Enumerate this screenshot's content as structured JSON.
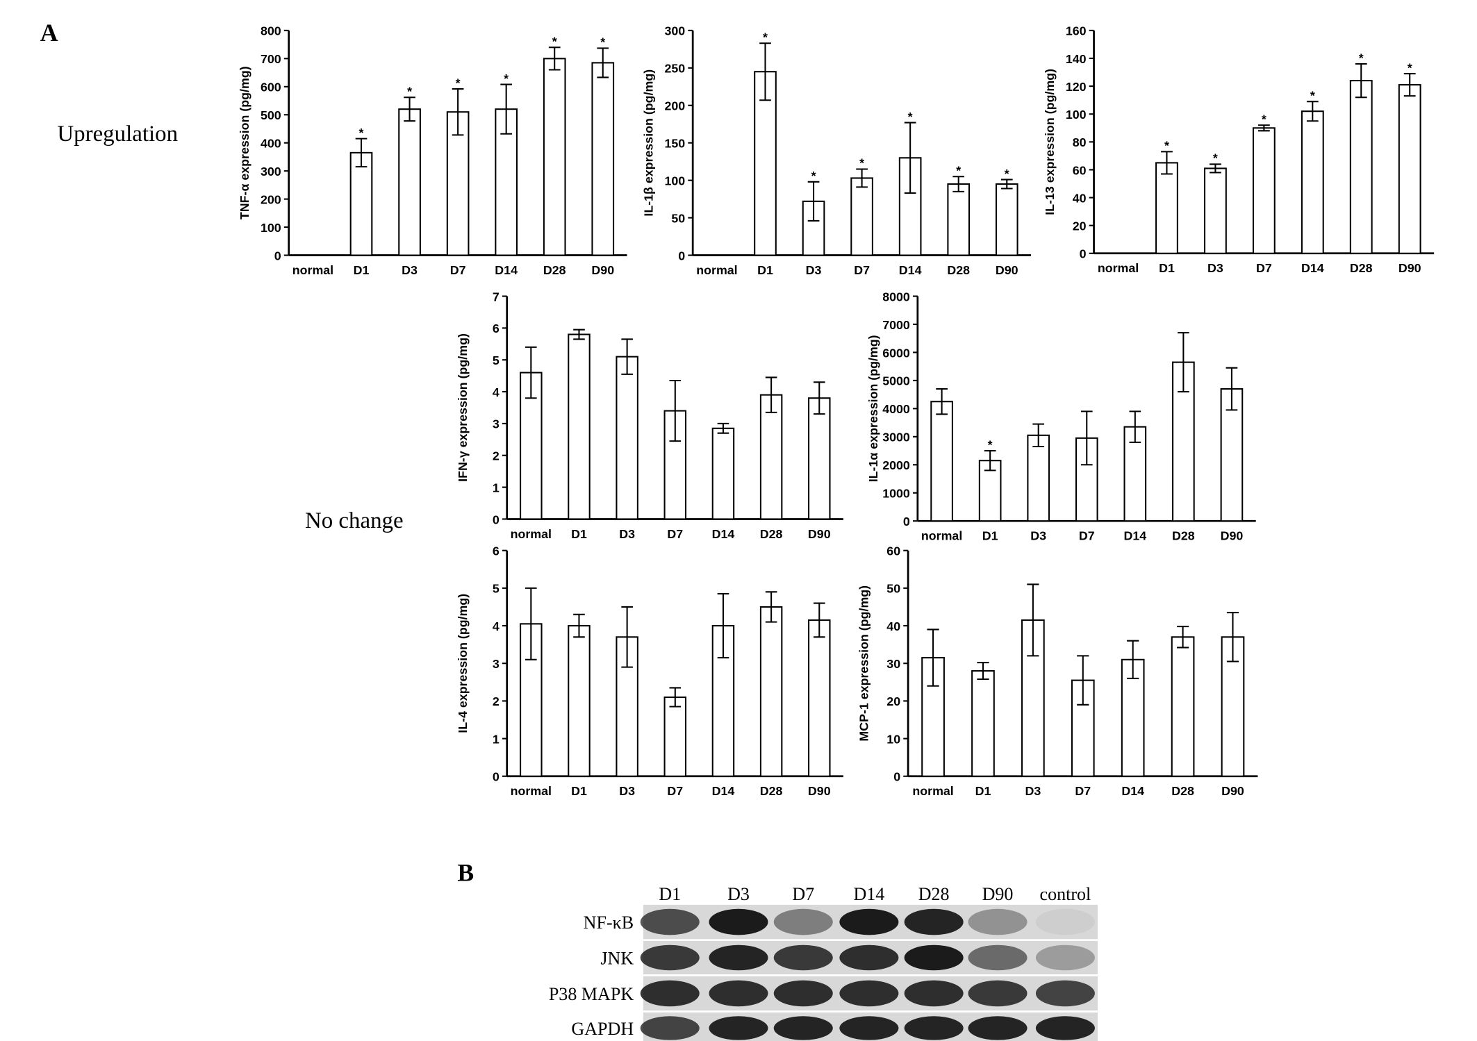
{
  "figure": {
    "panel_a": "A",
    "upregulation": "Upregulation",
    "no_change": "No change",
    "panel_b": "B"
  },
  "chart_data": [
    {
      "type": "bar",
      "ylabel": "TNF-α expression (pg/mg)",
      "categories": [
        "normal",
        "D1",
        "D3",
        "D7",
        "D14",
        "D28",
        "D90"
      ],
      "values": [
        0,
        365,
        520,
        510,
        520,
        700,
        685
      ],
      "errors": [
        0,
        50,
        42,
        82,
        88,
        40,
        52
      ],
      "significance": [
        null,
        "*",
        "*",
        "*",
        "*",
        "*",
        "*"
      ],
      "color": "#ffffff",
      "ylim": [
        0,
        800
      ],
      "yticks": [
        0,
        100,
        200,
        300,
        400,
        500,
        600,
        700,
        800
      ]
    },
    {
      "type": "bar",
      "ylabel": "IL-1β expression (pg/mg)",
      "categories": [
        "normal",
        "D1",
        "D3",
        "D7",
        "D14",
        "D28",
        "D90"
      ],
      "values": [
        0,
        245,
        72,
        103,
        130,
        95,
        95
      ],
      "errors": [
        0,
        38,
        26,
        12,
        47,
        10,
        6
      ],
      "significance": [
        null,
        "*",
        "*",
        "*",
        "*",
        "*",
        "*"
      ],
      "color": "#ffffff",
      "ylim": [
        0,
        300
      ],
      "yticks": [
        0,
        50,
        100,
        150,
        200,
        250,
        300
      ]
    },
    {
      "type": "bar",
      "ylabel": "IL-13 expression (pg/mg)",
      "categories": [
        "normal",
        "D1",
        "D3",
        "D7",
        "D14",
        "D28",
        "D90"
      ],
      "values": [
        0,
        65,
        61,
        90,
        102,
        124,
        121
      ],
      "errors": [
        0,
        8,
        3,
        2,
        7,
        12,
        8
      ],
      "significance": [
        null,
        "*",
        "*",
        "*",
        "*",
        "*",
        "*"
      ],
      "color": "#ffffff",
      "ylim": [
        0,
        160
      ],
      "yticks": [
        0,
        20,
        40,
        60,
        80,
        100,
        120,
        140,
        160
      ]
    },
    {
      "type": "bar",
      "ylabel": "IFN-γ expression (pg/mg)",
      "categories": [
        "normal",
        "D1",
        "D3",
        "D7",
        "D14",
        "D28",
        "D90"
      ],
      "values": [
        4.6,
        5.8,
        5.1,
        3.4,
        2.85,
        3.9,
        3.8
      ],
      "errors": [
        0.8,
        0.15,
        0.55,
        0.95,
        0.15,
        0.55,
        0.5
      ],
      "color": "#ffffff",
      "ylim": [
        0,
        7
      ],
      "yticks": [
        0,
        1,
        2,
        3,
        4,
        5,
        6,
        7
      ]
    },
    {
      "type": "bar",
      "ylabel": "IL-1α expression (pg/mg)",
      "categories": [
        "normal",
        "D1",
        "D3",
        "D7",
        "D14",
        "D28",
        "D90"
      ],
      "values": [
        4250,
        2150,
        3050,
        2950,
        3350,
        5650,
        4700
      ],
      "errors": [
        450,
        350,
        400,
        950,
        550,
        1050,
        750
      ],
      "significance": [
        null,
        "*",
        null,
        null,
        null,
        null,
        null
      ],
      "color": "#ffffff",
      "ylim": [
        0,
        8000
      ],
      "yticks": [
        0,
        1000,
        2000,
        3000,
        4000,
        5000,
        6000,
        7000,
        8000
      ]
    },
    {
      "type": "bar",
      "ylabel": "IL-4 expression (pg/mg)",
      "categories": [
        "normal",
        "D1",
        "D3",
        "D7",
        "D14",
        "D28",
        "D90"
      ],
      "values": [
        4.05,
        4.0,
        3.7,
        2.1,
        4.0,
        4.5,
        4.15
      ],
      "errors": [
        0.95,
        0.3,
        0.8,
        0.25,
        0.85,
        0.4,
        0.45
      ],
      "color": "#ffffff",
      "ylim": [
        0,
        6
      ],
      "yticks": [
        0,
        1,
        2,
        3,
        4,
        5,
        6
      ]
    },
    {
      "type": "bar",
      "ylabel": "MCP-1 expression (pg/mg)",
      "categories": [
        "normal",
        "D1",
        "D3",
        "D7",
        "D14",
        "D28",
        "D90"
      ],
      "values": [
        31.5,
        28,
        41.5,
        25.5,
        31,
        37,
        37
      ],
      "errors": [
        7.5,
        2.2,
        9.5,
        6.5,
        5,
        2.8,
        6.5
      ],
      "color": "#ffffff",
      "ylim": [
        0,
        60
      ],
      "yticks": [
        0,
        10,
        20,
        30,
        40,
        50,
        60
      ]
    }
  ],
  "blot": {
    "lanes": [
      "D1",
      "D3",
      "D7",
      "D14",
      "D28",
      "D90",
      "control"
    ],
    "rows": [
      "NF-κB",
      "JNK",
      "P38 MAPK",
      "GAPDH"
    ]
  }
}
